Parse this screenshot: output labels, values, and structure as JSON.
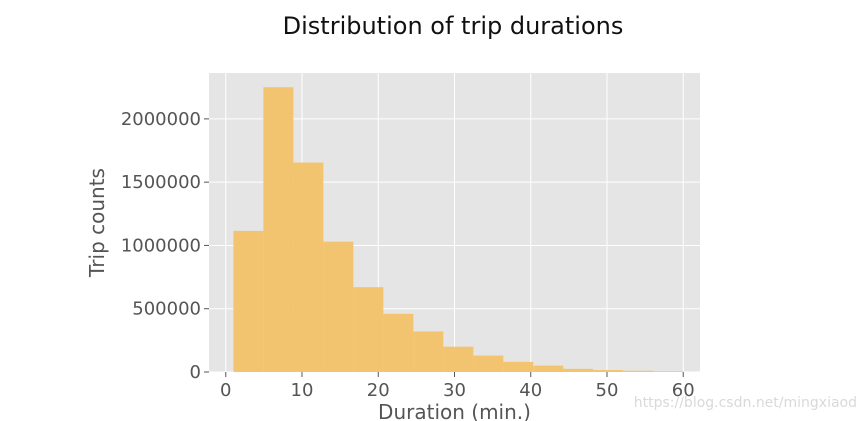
{
  "chart_data": {
    "type": "bar",
    "title": "Distribution of trip durations",
    "xlabel": "Duration (min.)",
    "ylabel": "Trip counts",
    "bins": [
      {
        "start": 1,
        "end": 4.93,
        "count": 1115000
      },
      {
        "start": 4.93,
        "end": 8.87,
        "count": 2250000
      },
      {
        "start": 8.87,
        "end": 12.8,
        "count": 1655000
      },
      {
        "start": 12.8,
        "end": 16.73,
        "count": 1030000
      },
      {
        "start": 16.73,
        "end": 20.67,
        "count": 670000
      },
      {
        "start": 20.67,
        "end": 24.6,
        "count": 460000
      },
      {
        "start": 24.6,
        "end": 28.53,
        "count": 320000
      },
      {
        "start": 28.53,
        "end": 32.47,
        "count": 200000
      },
      {
        "start": 32.47,
        "end": 36.4,
        "count": 130000
      },
      {
        "start": 36.4,
        "end": 40.33,
        "count": 80000
      },
      {
        "start": 40.33,
        "end": 44.27,
        "count": 50000
      },
      {
        "start": 44.27,
        "end": 48.2,
        "count": 25000
      },
      {
        "start": 48.2,
        "end": 52.13,
        "count": 15000
      },
      {
        "start": 52.13,
        "end": 56.07,
        "count": 10000
      },
      {
        "start": 56.07,
        "end": 60,
        "count": 5000
      }
    ],
    "xlim": [
      -2.2,
      62.2
    ],
    "ylim": [
      0,
      2362500
    ],
    "xticks": [
      0,
      10,
      20,
      30,
      40,
      50,
      60
    ],
    "xtick_labels": [
      "0",
      "10",
      "20",
      "30",
      "40",
      "50",
      "60"
    ],
    "yticks": [
      0,
      500000,
      1000000,
      1500000,
      2000000
    ],
    "ytick_labels": [
      "0",
      "500000",
      "1000000",
      "1500000",
      "2000000"
    ],
    "grid": true,
    "bar_color": "#f2c46f",
    "background_color": "#e5e5e5",
    "grid_color": "#ffffff",
    "tick_label_color": "#555555"
  },
  "watermark": "https://blog.csdn.net/mingxiaod"
}
